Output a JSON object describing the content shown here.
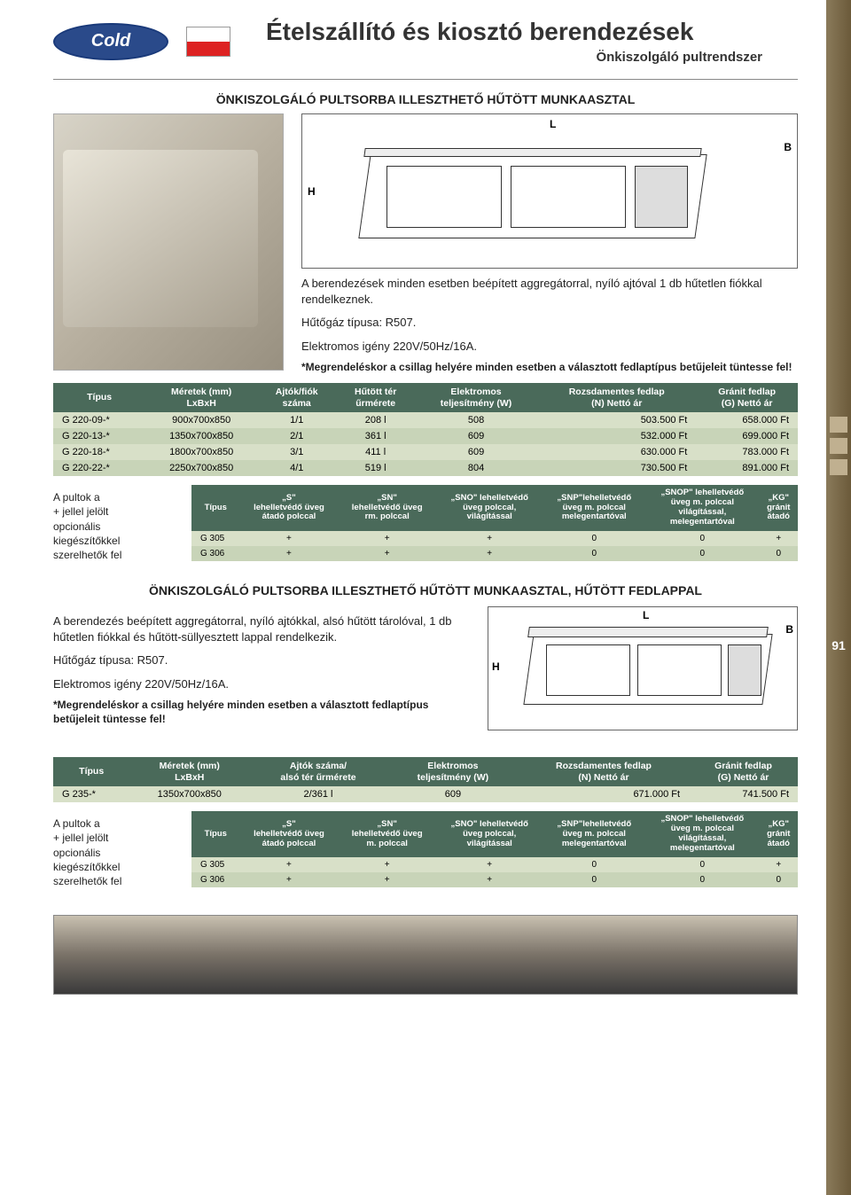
{
  "page_number": "91",
  "logo_text": "Cold",
  "header": {
    "title": "Ételszállító és kiosztó berendezések",
    "subtitle": "Önkiszolgáló pultrendszer"
  },
  "section1": {
    "heading": "ÖNKISZOLGÁLÓ PULTSORBA ILLESZTHETŐ HŰTÖTT MUNKAASZTAL",
    "diagram_labels": {
      "L": "L",
      "B": "B",
      "H": "H"
    },
    "desc_line1": "A berendezések minden esetben beépített aggregátorral, nyíló ajtóval 1 db hűtetlen fiókkal rendelkeznek.",
    "desc_line2": "Hűtőgáz típusa: R507.",
    "desc_line3": "Elektromos igény 220V/50Hz/16A.",
    "note": "*Megrendeléskor a csillag helyére minden esetben a választott fedlaptípus betűjeleit tüntesse fel!"
  },
  "table1": {
    "columns": [
      "Típus",
      "Méretek (mm)\nLxBxH",
      "Ajtók/fiók\nszáma",
      "Hűtött tér\nűrmérete",
      "Elektromos\nteljesítmény (W)",
      "Rozsdamentes fedlap\n(N) Nettó ár",
      "Gránit fedlap\n(G) Nettó ár"
    ],
    "rows": [
      [
        "G 220-09-*",
        "900x700x850",
        "1/1",
        "208 l",
        "508",
        "503.500 Ft",
        "658.000 Ft"
      ],
      [
        "G 220-13-*",
        "1350x700x850",
        "2/1",
        "361 l",
        "609",
        "532.000 Ft",
        "699.000 Ft"
      ],
      [
        "G 220-18-*",
        "1800x700x850",
        "3/1",
        "411 l",
        "609",
        "630.000 Ft",
        "783.000 Ft"
      ],
      [
        "G 220-22-*",
        "2250x700x850",
        "4/1",
        "519 l",
        "804",
        "730.500 Ft",
        "891.000 Ft"
      ]
    ],
    "header_bg": "#4a6a5a",
    "row_colors": [
      "#d8e0c8",
      "#c8d4b8"
    ]
  },
  "opt_text": "A pultok a\n+ jellel jelölt\nopcionális\nkiegészítőkkel\nszerelhetők fel",
  "table2": {
    "columns": [
      "Típus",
      "„S\"\nlehelletvédő üveg\nátadó polccal",
      "„SN\"\nlehelletvédő üveg\nrm. polccal",
      "„SNO\" lehelletvédő\nüveg polccal,\nvilágítással",
      "„SNP\"lehelletvédő\nüveg m. polccal\nmelegentartóval",
      "„SNOP\" lehelletvédő\nüveg m. polccal\nvilágítással,\nmelegentartóval",
      "„KG\"\ngránit\nátadó"
    ],
    "rows": [
      [
        "G 305",
        "+",
        "+",
        "+",
        "0",
        "0",
        "+"
      ],
      [
        "G 306",
        "+",
        "+",
        "+",
        "0",
        "0",
        "0"
      ]
    ]
  },
  "section2": {
    "heading": "ÖNKISZOLGÁLÓ PULTSORBA ILLESZTHETŐ HŰTÖTT MUNKAASZTAL, HŰTÖTT FEDLAPPAL",
    "desc_line1": "A berendezés beépített aggregátorral, nyíló ajtókkal, alsó hűtött tárolóval, 1 db hűtetlen fiókkal és hűtött-süllyesztett lappal rendelkezik.",
    "desc_line2": "Hűtőgáz típusa: R507.",
    "desc_line3": "Elektromos igény 220V/50Hz/16A.",
    "note": "*Megrendeléskor a csillag helyére minden esetben a választott fedlaptípus betűjeleit tüntesse fel!"
  },
  "table3": {
    "columns": [
      "Típus",
      "Méretek (mm)\nLxBxH",
      "Ajtók száma/\nalsó tér űrmérete",
      "Elektromos\nteljesítmény (W)",
      "Rozsdamentes fedlap\n(N) Nettó ár",
      "Gránit fedlap\n(G) Nettó ár"
    ],
    "rows": [
      [
        "G 235-*",
        "1350x700x850",
        "2/361 l",
        "609",
        "671.000 Ft",
        "741.500 Ft"
      ]
    ]
  },
  "table4": {
    "columns": [
      "Típus",
      "„S\"\nlehelletvédő üveg\nátadó polccal",
      "„SN\"\nlehelletvédő üveg\nm. polccal",
      "„SNO\" lehelletvédő\nüveg polccal,\nvilágítással",
      "„SNP\"lehelletvédő\nüveg m. polccal\nmelegentartóval",
      "„SNOP\" lehelletvédő\nüveg m. polccal\nvilágítással,\nmelegentartóval",
      "„KG\"\ngránit\nátadó"
    ],
    "rows": [
      [
        "G 305",
        "+",
        "+",
        "+",
        "0",
        "0",
        "+"
      ],
      [
        "G 306",
        "+",
        "+",
        "+",
        "0",
        "0",
        "0"
      ]
    ]
  }
}
